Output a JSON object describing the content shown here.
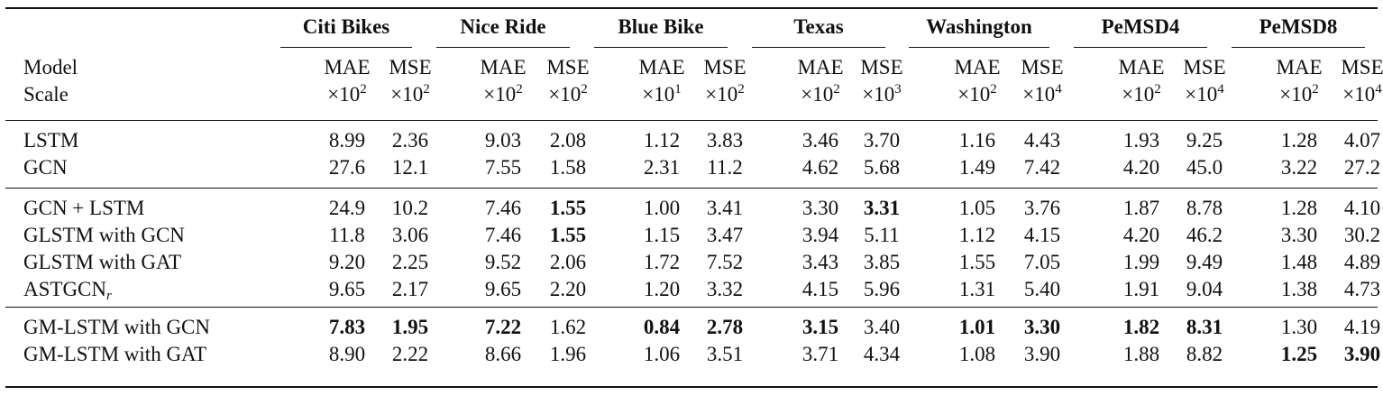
{
  "datasets": [
    "Citi Bikes",
    "Nice Ride",
    "Blue Bike",
    "Texas",
    "Washington",
    "PeMSD4",
    "PeMSD8"
  ],
  "header": {
    "row1_label": "Model",
    "row2_label": "Scale",
    "metrics": [
      "MAE",
      "MSE"
    ],
    "scale_prefix": "×10",
    "scales": [
      [
        "2",
        "2"
      ],
      [
        "2",
        "2"
      ],
      [
        "1",
        "2"
      ],
      [
        "2",
        "3"
      ],
      [
        "2",
        "4"
      ],
      [
        "2",
        "4"
      ],
      [
        "2",
        "4"
      ]
    ]
  },
  "groups": [
    [
      {
        "model": "LSTM",
        "sub": "",
        "values": [
          "8.99",
          "2.36",
          "9.03",
          "2.08",
          "1.12",
          "3.83",
          "3.46",
          "3.70",
          "1.16",
          "4.43",
          "1.93",
          "9.25",
          "1.28",
          "4.07"
        ],
        "bold": []
      },
      {
        "model": "GCN",
        "sub": "",
        "values": [
          "27.6",
          "12.1",
          "7.55",
          "1.58",
          "2.31",
          "11.2",
          "4.62",
          "5.68",
          "1.49",
          "7.42",
          "4.20",
          "45.0",
          "3.22",
          "27.2"
        ],
        "bold": []
      }
    ],
    [
      {
        "model": "GCN + LSTM",
        "sub": "",
        "values": [
          "24.9",
          "10.2",
          "7.46",
          "1.55",
          "1.00",
          "3.41",
          "3.30",
          "3.31",
          "1.05",
          "3.76",
          "1.87",
          "8.78",
          "1.28",
          "4.10"
        ],
        "bold": [
          3,
          7
        ]
      },
      {
        "model": "GLSTM with GCN",
        "sub": "",
        "values": [
          "11.8",
          "3.06",
          "7.46",
          "1.55",
          "1.15",
          "3.47",
          "3.94",
          "5.11",
          "1.12",
          "4.15",
          "4.20",
          "46.2",
          "3.30",
          "30.2"
        ],
        "bold": [
          3
        ]
      },
      {
        "model": "GLSTM with GAT",
        "sub": "",
        "values": [
          "9.20",
          "2.25",
          "9.52",
          "2.06",
          "1.72",
          "7.52",
          "3.43",
          "3.85",
          "1.55",
          "7.05",
          "1.99",
          "9.49",
          "1.48",
          "4.89"
        ],
        "bold": []
      },
      {
        "model": "ASTGCN",
        "sub": "r",
        "values": [
          "9.65",
          "2.17",
          "9.65",
          "2.20",
          "1.20",
          "3.32",
          "4.15",
          "5.96",
          "1.31",
          "5.40",
          "1.91",
          "9.04",
          "1.38",
          "4.73"
        ],
        "bold": []
      }
    ],
    [
      {
        "model": "GM-LSTM with GCN",
        "sub": "",
        "values": [
          "7.83",
          "1.95",
          "7.22",
          "1.62",
          "0.84",
          "2.78",
          "3.15",
          "3.40",
          "1.01",
          "3.30",
          "1.82",
          "8.31",
          "1.30",
          "4.19"
        ],
        "bold": [
          0,
          1,
          2,
          4,
          5,
          6,
          8,
          9,
          10,
          11
        ]
      },
      {
        "model": "GM-LSTM with GAT",
        "sub": "",
        "values": [
          "8.90",
          "2.22",
          "8.66",
          "1.96",
          "1.06",
          "3.51",
          "3.71",
          "4.34",
          "1.08",
          "3.90",
          "1.88",
          "8.82",
          "1.25",
          "3.90"
        ],
        "bold": [
          12,
          13
        ]
      }
    ]
  ]
}
